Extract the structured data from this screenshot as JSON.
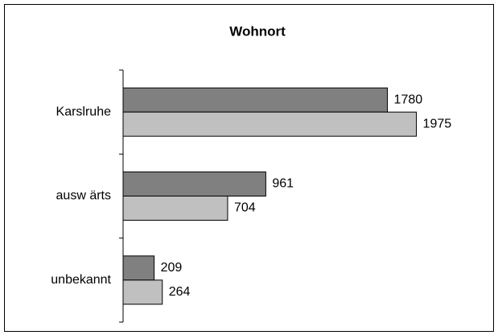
{
  "chart_data": {
    "type": "bar",
    "orientation": "horizontal",
    "title": "Wohnort",
    "categories": [
      "Karslruhe",
      "ausw ärts",
      "unbekannt"
    ],
    "series": [
      {
        "color": "#808080",
        "values": [
          1780,
          961,
          209
        ]
      },
      {
        "color": "#c0c0c0",
        "values": [
          1975,
          704,
          264
        ]
      }
    ],
    "xlim": [
      0,
      2400
    ]
  }
}
